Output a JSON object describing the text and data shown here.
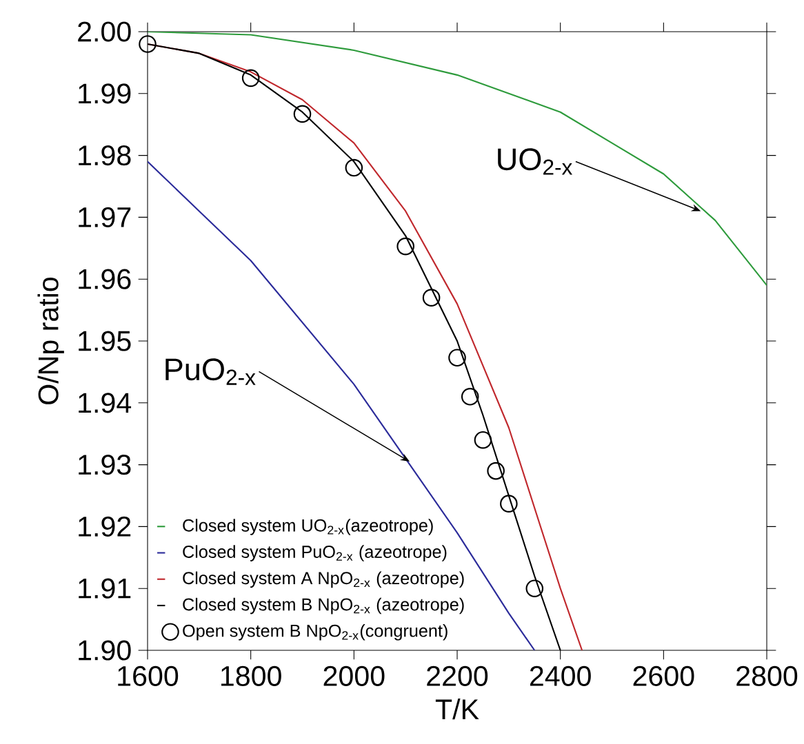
{
  "chart_data": {
    "type": "line",
    "xlabel": "T/K",
    "ylabel": "O/Np ratio",
    "xlim": [
      1600,
      2800
    ],
    "ylim": [
      1.9,
      2.0
    ],
    "xticks": [
      1600,
      1800,
      2000,
      2200,
      2400,
      2600,
      2800
    ],
    "yticks": [
      {
        "value": 1.9,
        "label": "1.90"
      },
      1.91,
      1.92,
      1.93,
      1.94,
      1.95,
      1.96,
      1.97,
      1.98,
      1.99,
      {
        "value": 2.0,
        "label": "2.00"
      }
    ],
    "legend": "bottom left",
    "marker": "none",
    "series": [
      {
        "name": "Closed system UO$_{2-x}$(azeotrope)",
        "type": "line",
        "color": "#2e9b3c",
        "x": [
          1600,
          1800,
          2000,
          2200,
          2300,
          2400,
          2500,
          2600,
          2700,
          2800
        ],
        "values": [
          2.0,
          1.9995,
          1.997,
          1.993,
          1.99,
          1.987,
          1.982,
          1.977,
          1.9695,
          1.959
        ]
      },
      {
        "name": "Closed system PuO$_{2-x}$ (azeotrope)",
        "type": "line",
        "color": "#2b2b9a",
        "x": [
          1600,
          1700,
          1800,
          1900,
          2000,
          2100,
          2200,
          2300,
          2350
        ],
        "values": [
          1.979,
          1.971,
          1.963,
          1.953,
          1.943,
          1.931,
          1.919,
          1.906,
          1.9
        ]
      },
      {
        "name": "Closed system A NpO$_{2-x}$ (azeotrope)",
        "type": "line",
        "color": "#c0282d",
        "x": [
          1600,
          1700,
          1800,
          1900,
          2000,
          2100,
          2200,
          2300,
          2350,
          2400,
          2442
        ],
        "values": [
          1.998,
          1.9965,
          1.9935,
          1.989,
          1.982,
          1.971,
          1.956,
          1.936,
          1.923,
          1.91,
          1.9
        ]
      },
      {
        "name": "Closed system B NpO$_{2-x}$ (azeotrope)",
        "type": "line",
        "color": "#000000",
        "x": [
          1600,
          1700,
          1800,
          1900,
          2000,
          2100,
          2200,
          2250,
          2300,
          2350,
          2400
        ],
        "values": [
          1.998,
          1.9965,
          1.993,
          1.987,
          1.979,
          1.967,
          1.95,
          1.938,
          1.925,
          1.912,
          1.9
        ]
      },
      {
        "name": "Open system B NpO$_{2-x}$(congruent)",
        "type": "scatter",
        "marker": "circle",
        "color": "#000000",
        "x": [
          1600,
          1800,
          1900,
          2000,
          2100,
          2150,
          2200,
          2225,
          2250,
          2275,
          2300,
          2350
        ],
        "values": [
          1.998,
          1.9925,
          1.9867,
          1.978,
          1.9653,
          1.957,
          1.9473,
          1.941,
          1.934,
          1.929,
          1.9237,
          1.91
        ]
      }
    ],
    "annotations": [
      {
        "text": "UO$_{2-x}$",
        "x": 2672,
        "y": 1.971
      },
      {
        "text": "PuO$_{2-x}$",
        "x": 2108,
        "y": 1.9305
      }
    ]
  }
}
